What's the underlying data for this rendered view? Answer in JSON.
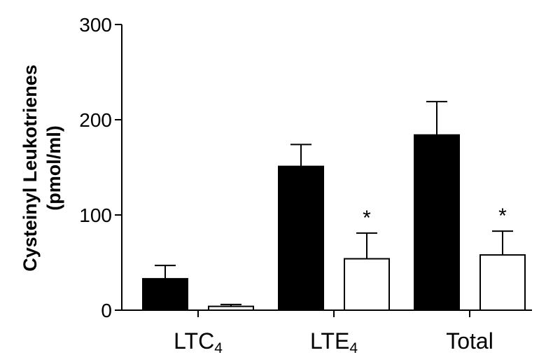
{
  "chart_data": {
    "type": "bar",
    "title": "",
    "ylabel_line1": "Cysteinyl Leukotrienes",
    "ylabel_line2": "(pmol/ml)",
    "xlabel": "",
    "ylim": [
      0,
      300
    ],
    "yticks": [
      0,
      100,
      200,
      300
    ],
    "categories": [
      {
        "main": "LTC",
        "sub": "4"
      },
      {
        "main": "LTE",
        "sub": "4"
      },
      {
        "main": "Total",
        "sub": ""
      }
    ],
    "series": [
      {
        "fill": "#000000",
        "values": [
          33,
          151,
          184
        ],
        "errors": [
          14,
          23,
          35
        ],
        "annotations": [
          "",
          "",
          ""
        ]
      },
      {
        "fill": "#ffffff",
        "values": [
          4,
          54,
          58
        ],
        "errors": [
          2,
          27,
          25
        ],
        "annotations": [
          "",
          "*",
          "*"
        ]
      }
    ],
    "grid": false,
    "legend": "none"
  }
}
